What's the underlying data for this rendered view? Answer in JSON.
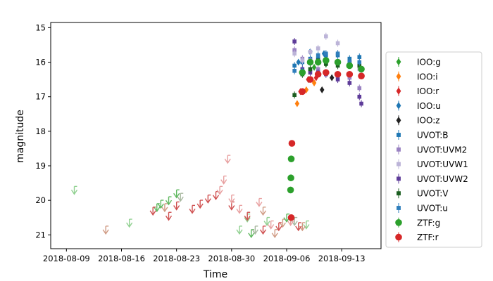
{
  "chart_data": {
    "type": "scatter",
    "title": "",
    "xlabel": "Time",
    "ylabel": "magnitude",
    "x_type": "date",
    "xlim": [
      "2018-08-07",
      "2018-09-18"
    ],
    "ylim": [
      21.4,
      14.85
    ],
    "y_inverted": true,
    "grid": false,
    "legend_position": "right",
    "x_ticks": [
      "2018-08-09",
      "2018-08-16",
      "2018-08-23",
      "2018-08-30",
      "2018-09-06",
      "2018-09-13"
    ],
    "x_tick_labels": [
      "2018-08-09",
      "2018-08-16",
      "2018-08-23",
      "2018-08-30",
      "2018-09-06",
      "2018-09-13"
    ],
    "y_ticks": [
      15,
      16,
      17,
      18,
      19,
      20,
      21
    ],
    "y_tick_labels": [
      "15",
      "16",
      "17",
      "18",
      "19",
      "20",
      "21"
    ],
    "series": [
      {
        "name": "IOO:g",
        "marker": "diamond",
        "color": "#2ca02c",
        "points": [
          [
            "2018-09-08T18:00",
            16.5
          ],
          [
            "2018-09-09T12:00",
            16.15
          ],
          [
            "2018-09-10T00:00",
            15.95
          ],
          [
            "2018-09-11T00:00",
            16.05
          ]
        ]
      },
      {
        "name": "IOO:i",
        "marker": "diamond",
        "color": "#ff7f0e",
        "points": [
          [
            "2018-09-07T08:00",
            17.2
          ],
          [
            "2018-09-08T12:00",
            16.8
          ],
          [
            "2018-09-09T12:00",
            16.6
          ]
        ]
      },
      {
        "name": "IOO:r",
        "marker": "diamond",
        "color": "#d62728",
        "points": [
          [
            "2018-09-07T18:00",
            16.85
          ],
          [
            "2018-09-08T18:00",
            16.5
          ],
          [
            "2018-09-09T18:00",
            16.45
          ]
        ]
      },
      {
        "name": "IOO:u",
        "marker": "diamond",
        "color": "#1f77b4",
        "points": [
          [
            "2018-09-07T12:00",
            16.0
          ],
          [
            "2018-09-09T00:00",
            15.7
          ],
          [
            "2018-09-10T18:00",
            15.75
          ]
        ]
      },
      {
        "name": "IOO:z",
        "marker": "diamond",
        "color": "#222222",
        "points": [
          [
            "2018-09-10T12:00",
            16.8
          ],
          [
            "2018-09-11T18:00",
            16.45
          ]
        ]
      },
      {
        "name": "UVOT:B",
        "marker": "square",
        "color": "#1f77b4",
        "points": [
          [
            "2018-09-07T00:00",
            16.1
          ],
          [
            "2018-09-08T00:00",
            16.0
          ],
          [
            "2018-09-09T00:00",
            15.9
          ],
          [
            "2018-09-10T00:00",
            15.9
          ],
          [
            "2018-09-11T00:00",
            15.8
          ],
          [
            "2018-09-12T12:00",
            15.8
          ],
          [
            "2018-09-14T00:00",
            15.9
          ],
          [
            "2018-09-15T06:00",
            15.85
          ]
        ]
      },
      {
        "name": "UVOT:UVM2",
        "marker": "square",
        "color": "#9a82c2",
        "points": [
          [
            "2018-09-07T00:00",
            15.65
          ],
          [
            "2018-09-08T00:00",
            15.9
          ],
          [
            "2018-09-09T00:00",
            15.95
          ],
          [
            "2018-09-10T00:00",
            16.2
          ],
          [
            "2018-09-11T00:00",
            16.3
          ],
          [
            "2018-09-12T12:00",
            16.4
          ],
          [
            "2018-09-14T00:00",
            16.45
          ],
          [
            "2018-09-15T06:00",
            16.75
          ]
        ]
      },
      {
        "name": "UVOT:UVW1",
        "marker": "square",
        "color": "#bcb4d8",
        "points": [
          [
            "2018-09-07T00:00",
            15.75
          ],
          [
            "2018-09-08T00:00",
            15.95
          ],
          [
            "2018-09-09T00:00",
            15.7
          ],
          [
            "2018-09-10T00:00",
            15.6
          ],
          [
            "2018-09-11T00:00",
            15.25
          ],
          [
            "2018-09-12T12:00",
            15.45
          ],
          [
            "2018-09-14T00:00",
            16.0
          ],
          [
            "2018-09-15T06:00",
            16.2
          ]
        ]
      },
      {
        "name": "UVOT:UVW2",
        "marker": "square",
        "color": "#5e3c99",
        "points": [
          [
            "2018-09-07T00:00",
            15.4
          ],
          [
            "2018-09-08T00:00",
            16.2
          ],
          [
            "2018-09-09T00:00",
            16.3
          ],
          [
            "2018-09-10T00:00",
            16.3
          ],
          [
            "2018-09-11T00:00",
            16.35
          ],
          [
            "2018-09-12T12:00",
            16.5
          ],
          [
            "2018-09-14T00:00",
            16.6
          ],
          [
            "2018-09-15T06:00",
            17.0
          ],
          [
            "2018-09-15T12:00",
            17.2
          ]
        ]
      },
      {
        "name": "UVOT:V",
        "marker": "square",
        "color": "#1b5e20",
        "points": [
          [
            "2018-09-07T00:00",
            16.95
          ],
          [
            "2018-09-08T00:00",
            16.35
          ],
          [
            "2018-09-09T00:00",
            16.2
          ],
          [
            "2018-09-10T00:00",
            15.95
          ],
          [
            "2018-09-11T00:00",
            16.05
          ],
          [
            "2018-09-12T12:00",
            16.1
          ],
          [
            "2018-09-14T00:00",
            16.0
          ],
          [
            "2018-09-15T06:00",
            16.1
          ]
        ]
      },
      {
        "name": "UVOT:u",
        "marker": "square",
        "color": "#2f7ebc",
        "points": [
          [
            "2018-09-07T00:00",
            16.25
          ],
          [
            "2018-09-08T00:00",
            16.25
          ],
          [
            "2018-09-09T00:00",
            16.0
          ],
          [
            "2018-09-10T00:00",
            15.8
          ],
          [
            "2018-09-11T00:00",
            15.75
          ],
          [
            "2018-09-12T12:00",
            15.75
          ],
          [
            "2018-09-14T00:00",
            16.0
          ],
          [
            "2018-09-15T06:00",
            16.0
          ]
        ]
      },
      {
        "name": "ZTF:g",
        "marker": "circle",
        "color": "#2ca02c",
        "points": [
          [
            "2018-09-06T12:00",
            19.7
          ],
          [
            "2018-09-06T13:00",
            19.35
          ],
          [
            "2018-09-06T14:00",
            18.8
          ],
          [
            "2018-09-08T00:00",
            16.3
          ],
          [
            "2018-09-09T00:00",
            16.0
          ],
          [
            "2018-09-10T00:00",
            16.0
          ],
          [
            "2018-09-11T00:00",
            15.95
          ],
          [
            "2018-09-12T12:00",
            16.0
          ],
          [
            "2018-09-14T00:00",
            16.1
          ],
          [
            "2018-09-15T12:00",
            16.2
          ]
        ]
      },
      {
        "name": "ZTF:r",
        "marker": "circle",
        "color": "#d62728",
        "points": [
          [
            "2018-09-06T14:00",
            20.5
          ],
          [
            "2018-09-06T16:00",
            18.35
          ],
          [
            "2018-09-08T00:00",
            16.85
          ],
          [
            "2018-09-09T00:00",
            16.5
          ],
          [
            "2018-09-10T00:00",
            16.35
          ],
          [
            "2018-09-11T00:00",
            16.3
          ],
          [
            "2018-09-12T12:00",
            16.35
          ],
          [
            "2018-09-14T00:00",
            16.35
          ],
          [
            "2018-09-15T12:00",
            16.4
          ]
        ]
      }
    ],
    "upper_limits": [
      {
        "color": "#90d090",
        "points": [
          [
            "2018-08-10T00:00",
            19.8
          ],
          [
            "2018-08-17T00:00",
            20.75
          ],
          [
            "2018-08-31T00:00",
            20.95
          ],
          [
            "2018-09-01T00:00",
            20.6
          ],
          [
            "2018-09-03T12:00",
            20.7
          ],
          [
            "2018-09-08T12:00",
            20.8
          ]
        ]
      },
      {
        "color": "#d09b84",
        "points": [
          [
            "2018-08-14T00:00",
            20.95
          ],
          [
            "2018-08-21T12:00",
            20.3
          ],
          [
            "2018-09-03T00:00",
            20.4
          ],
          [
            "2018-09-04T12:00",
            21.05
          ],
          [
            "2018-09-05T12:00",
            20.75
          ],
          [
            "2018-09-08T00:00",
            20.85
          ]
        ]
      },
      {
        "color": "#5fb85f",
        "points": [
          [
            "2018-08-20T12:00",
            20.3
          ],
          [
            "2018-08-21T00:00",
            20.2
          ],
          [
            "2018-08-22T00:00",
            20.1
          ],
          [
            "2018-08-23T00:00",
            19.9
          ],
          [
            "2018-09-01T12:00",
            21.05
          ],
          [
            "2018-09-06T00:00",
            20.6
          ]
        ]
      },
      {
        "color": "#a8b8a0",
        "points": [
          [
            "2018-08-23T12:00",
            20.0
          ],
          [
            "2018-09-02T00:00",
            20.95
          ],
          [
            "2018-09-07T00:00",
            20.7
          ]
        ]
      },
      {
        "color": "#cf5050",
        "points": [
          [
            "2018-08-20T00:00",
            20.4
          ],
          [
            "2018-08-22T00:00",
            20.55
          ],
          [
            "2018-08-23T00:00",
            20.25
          ],
          [
            "2018-08-25T00:00",
            20.35
          ],
          [
            "2018-08-26T00:00",
            20.2
          ],
          [
            "2018-08-27T00:00",
            20.05
          ],
          [
            "2018-08-28T00:00",
            19.95
          ],
          [
            "2018-08-30T00:00",
            20.25
          ],
          [
            "2018-09-01T00:00",
            20.55
          ],
          [
            "2018-09-03T00:00",
            20.95
          ],
          [
            "2018-09-05T00:00",
            20.85
          ],
          [
            "2018-09-07T12:00",
            20.85
          ]
        ]
      },
      {
        "color": "#e8a0a0",
        "points": [
          [
            "2018-08-28T12:00",
            19.8
          ],
          [
            "2018-08-29T00:00",
            19.5
          ],
          [
            "2018-08-29T12:00",
            18.9
          ],
          [
            "2018-08-30T00:00",
            20.05
          ],
          [
            "2018-08-31T00:00",
            20.35
          ],
          [
            "2018-09-02T12:00",
            20.15
          ],
          [
            "2018-09-04T00:00",
            20.8
          ],
          [
            "2018-09-06T12:00",
            20.7
          ]
        ]
      }
    ]
  }
}
